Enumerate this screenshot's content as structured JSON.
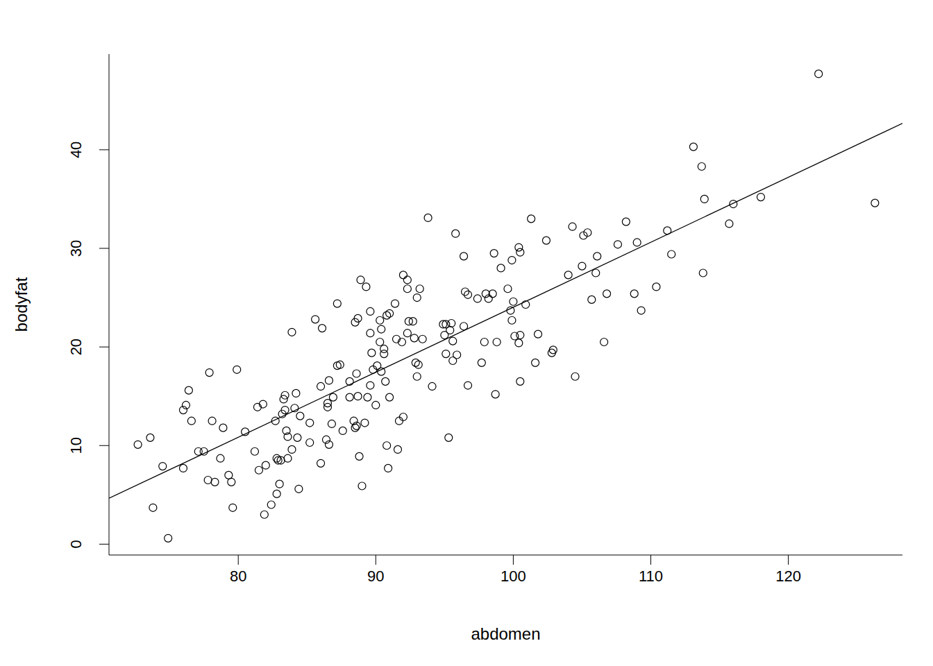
{
  "chart_data": {
    "type": "scatter",
    "x_label": "abdomen",
    "y_label": "bodyfat",
    "xlim": [
      70.6,
      128.3
    ],
    "ylim": [
      -1.1,
      49.7
    ],
    "xticks": [
      80,
      90,
      100,
      110,
      120
    ],
    "yticks": [
      0,
      10,
      20,
      30,
      40
    ],
    "grid": false,
    "series": [
      {
        "type": "scatter",
        "color": "#000000",
        "marker": "open_circle",
        "x": [
          72.7,
          73.6,
          73.8,
          74.5,
          74.9,
          76.0,
          76.0,
          76.2,
          76.4,
          76.6,
          77.1,
          77.5,
          77.8,
          77.9,
          78.1,
          78.3,
          78.7,
          78.9,
          79.3,
          79.5,
          79.6,
          79.9,
          80.5,
          81.2,
          81.4,
          81.5,
          81.8,
          81.9,
          82.0,
          82.4,
          82.7,
          82.8,
          82.8,
          82.9,
          83.0,
          83.1,
          83.2,
          83.3,
          83.4,
          83.4,
          83.5,
          83.6,
          83.6,
          83.9,
          83.9,
          84.1,
          84.2,
          84.3,
          84.5,
          84.4,
          85.2,
          85.2,
          85.6,
          86.0,
          86.0,
          86.1,
          86.4,
          86.5,
          86.5,
          86.6,
          86.6,
          86.8,
          86.9,
          87.2,
          87.2,
          87.4,
          87.6,
          88.1,
          88.1,
          88.4,
          88.5,
          88.5,
          88.6,
          88.6,
          88.7,
          88.7,
          88.8,
          88.9,
          89.0,
          89.2,
          89.3,
          89.4,
          89.6,
          89.6,
          89.7,
          89.6,
          89.8,
          90.0,
          90.1,
          90.3,
          90.3,
          90.4,
          90.4,
          90.6,
          90.6,
          90.7,
          90.8,
          90.8,
          90.9,
          91.0,
          91.0,
          91.4,
          91.5,
          91.6,
          91.7,
          91.9,
          92.0,
          92.0,
          92.3,
          92.3,
          92.3,
          92.4,
          92.7,
          92.8,
          92.9,
          93.0,
          93.0,
          93.1,
          93.2,
          93.4,
          93.8,
          94.1,
          94.9,
          95.0,
          95.1,
          95.1,
          95.3,
          95.4,
          95.5,
          95.6,
          95.6,
          95.8,
          95.9,
          96.4,
          96.4,
          96.5,
          96.7,
          96.7,
          97.4,
          97.7,
          97.9,
          98.0,
          98.2,
          98.5,
          98.6,
          98.7,
          98.8,
          99.1,
          99.6,
          99.8,
          99.9,
          99.9,
          100.0,
          100.1,
          100.4,
          100.4,
          100.5,
          100.5,
          100.5,
          100.9,
          101.3,
          101.6,
          101.8,
          102.4,
          102.8,
          102.9,
          104.0,
          104.3,
          104.5,
          105.0,
          105.1,
          105.4,
          105.7,
          106.0,
          106.1,
          106.6,
          106.8,
          107.6,
          108.2,
          108.8,
          109.0,
          109.3,
          110.4,
          111.2,
          111.5,
          113.1,
          113.7,
          113.8,
          113.9,
          115.7,
          116.0,
          118.0,
          122.2,
          126.3
        ],
        "values": [
          10.1,
          10.8,
          3.7,
          7.9,
          0.6,
          13.6,
          7.7,
          14.1,
          15.6,
          12.5,
          9.4,
          9.4,
          6.5,
          17.4,
          12.5,
          6.3,
          8.7,
          11.8,
          7.0,
          6.3,
          3.7,
          17.7,
          11.4,
          9.4,
          13.9,
          7.5,
          14.2,
          3.0,
          8.0,
          4.0,
          12.5,
          8.7,
          5.1,
          8.5,
          6.1,
          8.5,
          13.2,
          14.7,
          15.1,
          13.6,
          11.5,
          10.9,
          8.7,
          9.6,
          21.5,
          13.8,
          15.3,
          10.8,
          13.0,
          5.6,
          10.3,
          12.3,
          22.8,
          16.0,
          8.2,
          21.9,
          10.6,
          14.3,
          13.9,
          16.6,
          10.1,
          12.2,
          14.9,
          24.4,
          18.1,
          18.2,
          11.5,
          14.9,
          16.5,
          12.5,
          22.5,
          11.8,
          12.0,
          17.3,
          22.9,
          15.0,
          8.9,
          26.8,
          5.9,
          12.3,
          26.1,
          14.9,
          21.4,
          16.1,
          19.4,
          23.6,
          17.7,
          14.1,
          18.1,
          20.5,
          22.7,
          17.5,
          21.8,
          19.8,
          19.3,
          16.5,
          10.0,
          23.2,
          7.7,
          23.4,
          14.9,
          24.4,
          20.8,
          9.6,
          12.5,
          20.5,
          27.3,
          12.9,
          21.4,
          26.8,
          25.9,
          22.6,
          22.6,
          20.9,
          18.4,
          17.0,
          25.0,
          18.2,
          25.9,
          20.8,
          33.1,
          16.0,
          22.3,
          21.2,
          22.3,
          19.3,
          10.8,
          21.7,
          22.4,
          20.6,
          18.6,
          31.5,
          19.2,
          22.1,
          29.2,
          25.6,
          25.3,
          16.1,
          24.9,
          18.4,
          20.5,
          25.4,
          24.9,
          25.4,
          29.5,
          15.2,
          20.5,
          28.0,
          25.9,
          23.7,
          28.8,
          22.7,
          24.6,
          21.1,
          30.1,
          20.4,
          21.2,
          29.6,
          16.5,
          24.3,
          33.0,
          18.4,
          21.3,
          30.8,
          19.4,
          19.7,
          27.3,
          32.2,
          17.0,
          28.2,
          31.3,
          31.6,
          24.8,
          27.5,
          29.2,
          20.5,
          25.4,
          30.4,
          32.7,
          25.4,
          30.6,
          23.7,
          26.1,
          31.8,
          29.4,
          40.3,
          38.3,
          27.5,
          35.0,
          32.5,
          34.5,
          35.2,
          47.7,
          34.6
        ]
      },
      {
        "type": "line",
        "color": "#000000",
        "line_style": "solid",
        "x": [
          70.6,
          128.3
        ],
        "values": [
          4.65,
          42.68
        ]
      }
    ]
  }
}
